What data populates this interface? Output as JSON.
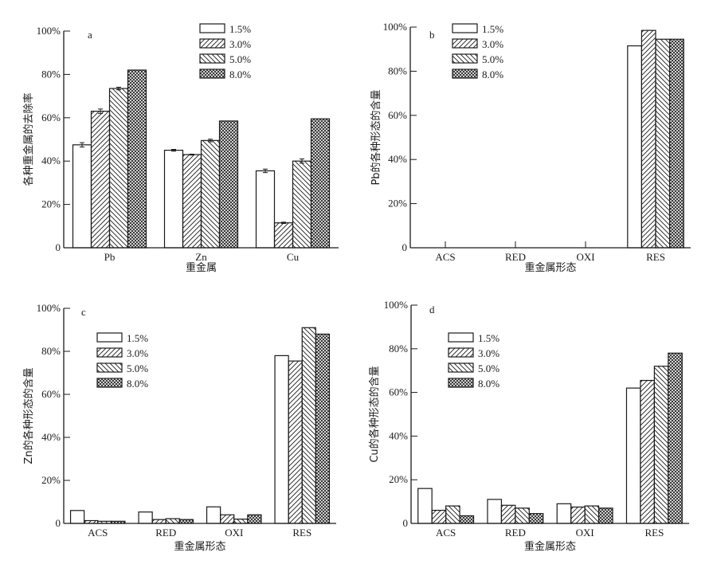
{
  "chart_data": [
    {
      "panel": "a",
      "type": "bar",
      "categories": [
        "Pb",
        "Zn",
        "Cu"
      ],
      "xlabel": "重金属",
      "ylabel": "各种重金属的去除率",
      "ylim": [
        0,
        100
      ],
      "yticks": [
        "0",
        "20%",
        "40%",
        "60%",
        "80%",
        "100%"
      ],
      "legend_placement": "top-right",
      "error_bars": true,
      "series": [
        {
          "name": "1.5%",
          "values": [
            47.5,
            45,
            35.5
          ],
          "errors": [
            1.0,
            0.4,
            0.8
          ]
        },
        {
          "name": "3.0%",
          "values": [
            63,
            43,
            11.5
          ],
          "errors": [
            1.0,
            0.2,
            0.3
          ]
        },
        {
          "name": "5.0%",
          "values": [
            73.5,
            49.5,
            40
          ],
          "errors": [
            0.6,
            0.6,
            1.0
          ]
        },
        {
          "name": "8.0%",
          "values": [
            82,
            58.5,
            59.5
          ],
          "errors": [
            0,
            0,
            0
          ]
        }
      ]
    },
    {
      "panel": "b",
      "type": "bar",
      "categories": [
        "ACS",
        "RED",
        "OXI",
        "RES"
      ],
      "xlabel": "重金属形态",
      "ylabel": "Pb的各种形态的含量",
      "ylim": [
        0,
        100
      ],
      "yticks": [
        "0",
        "20%",
        "40%",
        "60%",
        "80%",
        "100%"
      ],
      "legend_placement": "top-left",
      "series": [
        {
          "name": "1.5%",
          "values": [
            0,
            0,
            0,
            91.5
          ]
        },
        {
          "name": "3.0%",
          "values": [
            0,
            0,
            0,
            98.5
          ]
        },
        {
          "name": "5.0%",
          "values": [
            0,
            0,
            0,
            94.5
          ]
        },
        {
          "name": "8.0%",
          "values": [
            0,
            0,
            0,
            94.5
          ]
        }
      ]
    },
    {
      "panel": "c",
      "type": "bar",
      "categories": [
        "ACS",
        "RED",
        "OXI",
        "RES"
      ],
      "xlabel": "重金属形态",
      "ylabel": "Zn的各种形态的含量",
      "ylim": [
        0,
        100
      ],
      "yticks": [
        "0",
        "20%",
        "40%",
        "60%",
        "80%",
        "100%"
      ],
      "legend_placement": "top-left",
      "series": [
        {
          "name": "1.5%",
          "values": [
            6,
            5.3,
            7.7,
            78
          ]
        },
        {
          "name": "3.0%",
          "values": [
            1.3,
            1.8,
            4,
            75.5
          ]
        },
        {
          "name": "5.0%",
          "values": [
            1,
            2.2,
            2,
            91
          ]
        },
        {
          "name": "8.0%",
          "values": [
            1,
            1.8,
            4,
            88
          ]
        }
      ]
    },
    {
      "panel": "d",
      "type": "bar",
      "categories": [
        "ACS",
        "RED",
        "OXI",
        "RES"
      ],
      "xlabel": "重金属形态",
      "ylabel": "Cu的各种形态的含量",
      "ylim": [
        0,
        100
      ],
      "yticks": [
        "0",
        "20%",
        "40%",
        "60%",
        "80%",
        "100%"
      ],
      "legend_placement": "top-left",
      "series": [
        {
          "name": "1.5%",
          "values": [
            16,
            11,
            9,
            62
          ]
        },
        {
          "name": "3.0%",
          "values": [
            6,
            8.3,
            7.5,
            65.5
          ]
        },
        {
          "name": "5.0%",
          "values": [
            8,
            7,
            8,
            72
          ]
        },
        {
          "name": "8.0%",
          "values": [
            3.5,
            4.5,
            7,
            78
          ]
        }
      ]
    }
  ],
  "colors": {
    "stroke": "#1a1a1a",
    "background": "#ffffff"
  },
  "fill_patterns": [
    "empty",
    "forward-diagonal",
    "back-diagonal",
    "crosshatch"
  ]
}
